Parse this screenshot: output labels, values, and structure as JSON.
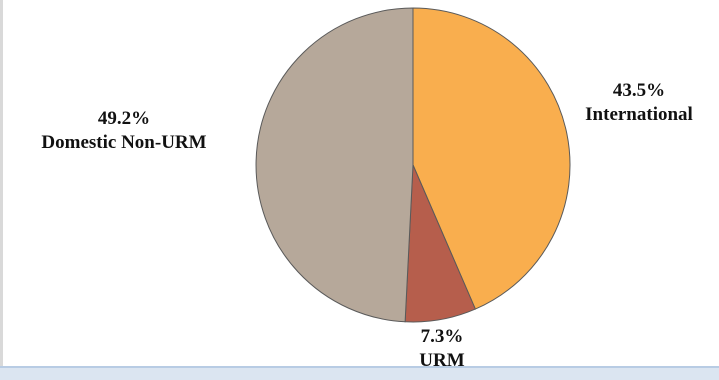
{
  "chart_data": {
    "type": "pie",
    "title": "",
    "slices": [
      {
        "label": "International",
        "value": 43.5,
        "value_text": "43.5%",
        "color": "#f9ae4e"
      },
      {
        "label": "URM",
        "value": 7.3,
        "value_text": "7.3%",
        "color": "#b65e4c"
      },
      {
        "label": "Domestic Non-URM",
        "value": 49.2,
        "value_text": "49.2%",
        "color": "#b6a89a"
      }
    ],
    "start_angle_deg": 0,
    "direction": "clockwise",
    "legend": "none"
  }
}
